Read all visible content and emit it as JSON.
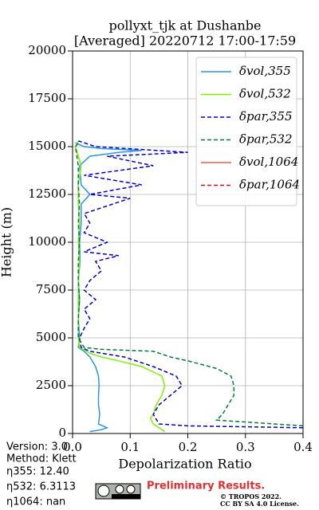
{
  "chart_data": {
    "type": "line",
    "title": [
      "pollyxt_tjk at Dushanbe",
      "[Averaged] 20220712 17:00-17:59"
    ],
    "x_label": "Depolarization Ratio",
    "y_label": "Height (m)",
    "xlim": [
      0,
      0.4
    ],
    "ylim": [
      0,
      20000
    ],
    "xticks": [
      {
        "value": 0,
        "label": "0.0"
      },
      0.1,
      0.2,
      0.3,
      0.4
    ],
    "yticks": [
      0,
      2500,
      5000,
      7500,
      10000,
      12500,
      15000,
      17500,
      20000
    ],
    "grid": true,
    "legend": "upper right",
    "series": [
      {
        "name": "δvol,355",
        "color": "#2a95e0",
        "linestyle": "solid",
        "y": [
          100,
          200,
          300,
          500,
          1000,
          1500,
          2000,
          2500,
          3000,
          3500,
          4000,
          4300,
          4500,
          5000,
          6000,
          7000,
          8000,
          9000,
          10000,
          11000,
          12000,
          12500,
          13000,
          14000,
          14500,
          14700,
          14800,
          14900,
          15000,
          15200
        ],
        "x": [
          0.03,
          0.05,
          0.06,
          0.045,
          0.047,
          0.045,
          0.045,
          0.046,
          0.045,
          0.04,
          0.03,
          0.02,
          0.01,
          0.012,
          0.01,
          0.012,
          0.01,
          0.013,
          0.012,
          0.015,
          0.015,
          0.03,
          0.015,
          0.012,
          0.03,
          0.08,
          0.12,
          0.05,
          0.02,
          0.005
        ]
      },
      {
        "name": "δvol,532",
        "color": "#80f000",
        "linestyle": "solid",
        "y": [
          100,
          300,
          500,
          800,
          1000,
          1500,
          2000,
          2500,
          3000,
          3500,
          3800,
          4000,
          4200,
          4500,
          5000,
          6000,
          7000,
          8000,
          9000,
          10000,
          11000,
          12000,
          13000,
          14000,
          14500,
          15000,
          15300
        ],
        "x": [
          0.16,
          0.15,
          0.14,
          0.135,
          0.14,
          0.145,
          0.155,
          0.16,
          0.155,
          0.12,
          0.08,
          0.05,
          0.03,
          0.012,
          0.01,
          0.01,
          0.01,
          0.01,
          0.012,
          0.01,
          0.012,
          0.01,
          0.01,
          0.015,
          0.01,
          0.005,
          0.01
        ]
      },
      {
        "name": "δpar,355",
        "color": "#0000cc",
        "linestyle": "dashed",
        "y": [
          300,
          400,
          500,
          1000,
          1500,
          2000,
          2500,
          3000,
          3500,
          4000,
          4300,
          4500,
          5000,
          5500,
          6000,
          6500,
          7000,
          7500,
          8000,
          8500,
          9000,
          9300,
          9500,
          10000,
          10500,
          11000,
          11500,
          12000,
          12300,
          12500,
          13000,
          13500,
          14000,
          14500,
          14700,
          15000,
          15300
        ],
        "x": [
          0.4,
          0.2,
          0.15,
          0.14,
          0.15,
          0.17,
          0.19,
          0.18,
          0.14,
          0.09,
          0.03,
          0.015,
          0.012,
          0.02,
          0.03,
          0.02,
          0.04,
          0.02,
          0.03,
          0.05,
          0.04,
          0.08,
          0.02,
          0.06,
          0.02,
          0.03,
          0.02,
          0.07,
          0.1,
          0.03,
          0.12,
          0.02,
          0.14,
          0.06,
          0.2,
          0.04,
          0.01
        ]
      },
      {
        "name": "δpar,532",
        "color": "#007a3d",
        "linestyle": "dashed",
        "y": [
          400,
          700,
          1000,
          1500,
          2000,
          2500,
          3000,
          3400,
          3800,
          4000,
          4300,
          4400,
          4500,
          5000,
          6000,
          7000,
          8000,
          9000,
          10000,
          11000,
          12000,
          13000,
          14000,
          15000,
          15200
        ],
        "x": [
          0.4,
          0.25,
          0.26,
          0.27,
          0.28,
          0.28,
          0.275,
          0.25,
          0.2,
          0.17,
          0.14,
          0.05,
          0.02,
          0.01,
          0.01,
          0.012,
          0.01,
          0.01,
          0.012,
          0.01,
          0.012,
          0.01,
          0.01,
          0.005,
          0.01
        ]
      },
      {
        "name": "δvol,1064",
        "color": "#f05a40",
        "linestyle": "solid",
        "y": [],
        "x": []
      },
      {
        "name": "δpar,1064",
        "color": "#d01010",
        "linestyle": "dashed",
        "y": [],
        "x": []
      }
    ],
    "notes": [
      "Version: 3.0",
      "Method: Klett",
      "η355:  12.40",
      "η532: 6.3113",
      "η1064:    nan"
    ],
    "badge": "Preliminary Results.",
    "copyright": [
      "© TROPOS 2022.",
      "CC BY SA 4.0 License."
    ]
  }
}
